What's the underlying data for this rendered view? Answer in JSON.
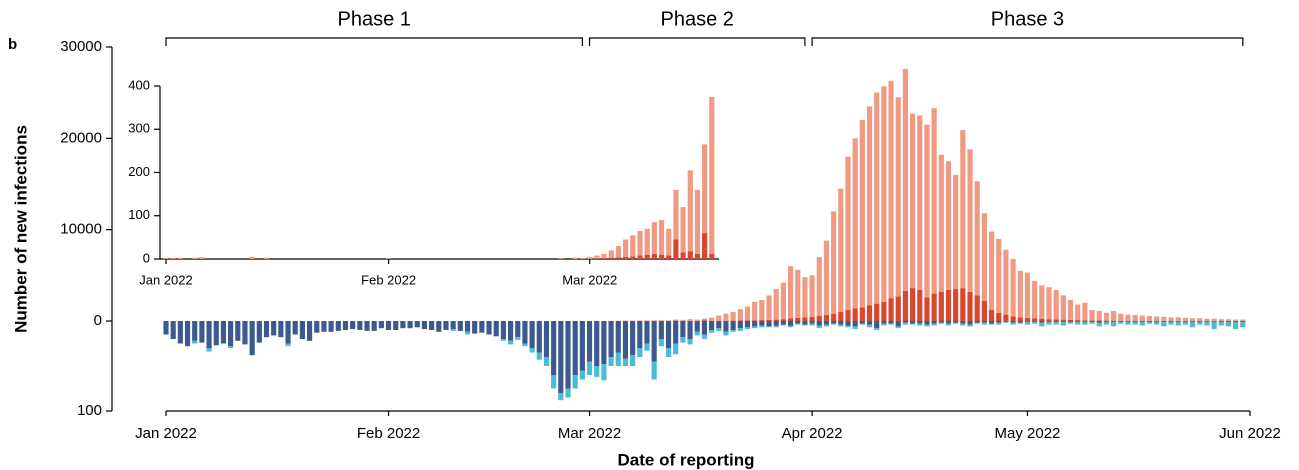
{
  "chart_data": [
    {
      "type": "bar",
      "stacked": true,
      "panel_label": "b",
      "xlabel": "Date of reporting",
      "ylabel": "Number of new infections",
      "xlim": [
        0,
        151
      ],
      "xticks": [
        {
          "value": 0,
          "label": "Jan 2022"
        },
        {
          "value": 31,
          "label": "Feb 2022"
        },
        {
          "value": 59,
          "label": "Mar 2022"
        },
        {
          "value": 90,
          "label": "Apr 2022"
        },
        {
          "value": 120,
          "label": "May 2022"
        },
        {
          "value": 151,
          "label": "Jun 2022"
        }
      ],
      "ylim": [
        0,
        30000
      ],
      "yticks": [
        0,
        10000,
        20000,
        30000
      ],
      "y2lim": [
        0,
        100
      ],
      "y2ticks": [
        100
      ],
      "y2_inverted": true,
      "phases": [
        {
          "label": "Phase 1",
          "start": 0,
          "end": 58
        },
        {
          "label": "Phase 2",
          "start": 59,
          "end": 89
        },
        {
          "label": "Phase 3",
          "start": 90,
          "end": 150
        }
      ],
      "x": [
        0,
        1,
        2,
        3,
        4,
        5,
        6,
        7,
        8,
        9,
        10,
        11,
        12,
        13,
        14,
        15,
        16,
        17,
        18,
        19,
        20,
        21,
        22,
        23,
        24,
        25,
        26,
        27,
        28,
        29,
        30,
        31,
        32,
        33,
        34,
        35,
        36,
        37,
        38,
        39,
        40,
        41,
        42,
        43,
        44,
        45,
        46,
        47,
        48,
        49,
        50,
        51,
        52,
        53,
        54,
        55,
        56,
        57,
        58,
        59,
        60,
        61,
        62,
        63,
        64,
        65,
        66,
        67,
        68,
        69,
        70,
        71,
        72,
        73,
        74,
        75,
        76,
        77,
        78,
        79,
        80,
        81,
        82,
        83,
        84,
        85,
        86,
        87,
        88,
        89,
        90,
        91,
        92,
        93,
        94,
        95,
        96,
        97,
        98,
        99,
        100,
        101,
        102,
        103,
        104,
        105,
        106,
        107,
        108,
        109,
        110,
        111,
        112,
        113,
        114,
        115,
        116,
        117,
        118,
        119,
        120,
        121,
        122,
        123,
        124,
        125,
        126,
        127,
        128,
        129,
        130,
        131,
        132,
        133,
        134,
        135,
        136,
        137,
        138,
        139,
        140,
        141,
        142,
        143,
        144,
        145,
        146,
        147,
        148,
        149,
        150
      ],
      "series": [
        {
          "color": "#d9472f",
          "values": [
            0,
            0,
            0,
            0,
            0,
            0,
            0,
            0,
            0,
            0,
            0,
            0,
            0,
            0,
            0,
            0,
            0,
            0,
            0,
            0,
            0,
            0,
            0,
            0,
            0,
            0,
            0,
            0,
            0,
            0,
            0,
            0,
            0,
            0,
            0,
            0,
            0,
            0,
            0,
            0,
            0,
            0,
            0,
            0,
            0,
            0,
            0,
            0,
            0,
            0,
            0,
            0,
            0,
            0,
            0,
            0,
            0,
            0,
            0,
            0,
            1,
            2,
            3,
            4,
            5,
            6,
            8,
            10,
            12,
            10,
            8,
            45,
            15,
            18,
            12,
            60,
            12,
            20,
            30,
            40,
            50,
            60,
            80,
            100,
            120,
            150,
            200,
            300,
            350,
            400,
            450,
            550,
            650,
            800,
            1000,
            1200,
            1400,
            1500,
            1700,
            1900,
            2100,
            2500,
            2700,
            3300,
            3600,
            3400,
            2600,
            3000,
            3200,
            3400,
            3500,
            3600,
            3200,
            2800,
            2200,
            1200,
            900,
            700,
            500,
            400,
            350,
            300,
            250,
            200,
            180,
            150,
            120,
            100,
            80,
            60,
            50,
            40,
            30,
            30,
            20,
            20,
            20,
            15,
            15,
            10,
            10,
            10,
            10,
            8,
            8,
            6,
            6,
            5,
            5,
            4,
            4
          ]
        },
        {
          "color": "#ef9a82",
          "values": [
            2,
            2,
            3,
            0,
            3,
            4,
            0,
            0,
            0,
            0,
            0,
            0,
            5,
            0,
            3,
            0,
            0,
            0,
            0,
            0,
            0,
            0,
            0,
            0,
            0,
            0,
            0,
            0,
            0,
            0,
            0,
            1,
            0,
            0,
            0,
            0,
            0,
            0,
            0,
            0,
            0,
            0,
            0,
            0,
            0,
            0,
            0,
            0,
            0,
            0,
            0,
            0,
            0,
            0,
            0,
            2,
            0,
            3,
            2,
            5,
            7,
            10,
            17,
            26,
            40,
            49,
            57,
            60,
            73,
            80,
            62,
            115,
            105,
            187,
            148,
            205,
            363,
            580,
            770,
            960,
            1250,
            1540,
            2020,
            2200,
            2680,
            3350,
            4000,
            5700,
            5250,
            4400,
            4550,
            6450,
            8150,
            11200,
            13500,
            16800,
            18600,
            20500,
            21800,
            23100,
            23600,
            23800,
            21800,
            24300,
            19100,
            19100,
            18900,
            20300,
            15000,
            14100,
            12500,
            17300,
            15600,
            12500,
            9600,
            8600,
            8100,
            7100,
            6300,
            5100,
            4950,
            4100,
            3650,
            3500,
            3220,
            2650,
            2180,
            1700,
            1920,
            1140,
            1050,
            860,
            1070,
            770,
            680,
            630,
            580,
            535,
            485,
            440,
            390,
            390,
            340,
            292,
            292,
            244,
            244,
            195,
            195,
            146,
            146
          ]
        },
        {
          "color": "#3d5a8e",
          "axis": "y2",
          "values": [
            15,
            20,
            25,
            28,
            22,
            24,
            30,
            27,
            25,
            28,
            22,
            26,
            38,
            24,
            18,
            16,
            18,
            25,
            15,
            20,
            22,
            13,
            12,
            12,
            11,
            10,
            9,
            10,
            11,
            11,
            8,
            10,
            10,
            8,
            8,
            7,
            9,
            10,
            12,
            10,
            9,
            11,
            12,
            14,
            13,
            15,
            17,
            20,
            22,
            18,
            25,
            30,
            35,
            40,
            60,
            80,
            75,
            60,
            55,
            45,
            50,
            48,
            40,
            35,
            42,
            38,
            30,
            25,
            45,
            20,
            30,
            25,
            18,
            20,
            12,
            15,
            10,
            8,
            12,
            10,
            8,
            7,
            6,
            5,
            6,
            5,
            4,
            5,
            3,
            4,
            3,
            5,
            4,
            3,
            4,
            5,
            6,
            3,
            4,
            8,
            3,
            3,
            6,
            2,
            3,
            3,
            4,
            3,
            2,
            3,
            2,
            3,
            4,
            2,
            2,
            3,
            2,
            1,
            2,
            2,
            1,
            1,
            2,
            1,
            1,
            1,
            1,
            1,
            1,
            1,
            2,
            1,
            1,
            1,
            1,
            1,
            1,
            1,
            1,
            1,
            1,
            1,
            1,
            1,
            1,
            1,
            1,
            1,
            1,
            1,
            1
          ]
        },
        {
          "color": "#4dbbd7",
          "axis": "y2",
          "values": [
            0,
            0,
            0,
            0,
            3,
            0,
            4,
            0,
            0,
            2,
            0,
            0,
            0,
            0,
            0,
            0,
            0,
            3,
            0,
            0,
            0,
            0,
            0,
            0,
            0,
            0,
            0,
            0,
            0,
            0,
            0,
            0,
            0,
            0,
            0,
            0,
            0,
            0,
            0,
            0,
            2,
            0,
            3,
            0,
            0,
            0,
            0,
            2,
            4,
            3,
            3,
            5,
            8,
            10,
            15,
            8,
            10,
            15,
            10,
            15,
            12,
            18,
            10,
            15,
            8,
            12,
            10,
            8,
            20,
            8,
            10,
            12,
            6,
            6,
            4,
            5,
            3,
            3,
            4,
            2,
            3,
            2,
            2,
            2,
            1,
            2,
            1,
            2,
            1,
            1,
            2,
            3,
            2,
            1,
            2,
            2,
            3,
            1,
            3,
            2,
            2,
            1,
            2,
            2,
            1,
            2,
            2,
            2,
            1,
            2,
            1,
            2,
            2,
            1,
            2,
            1,
            2,
            1,
            2,
            1,
            3,
            2,
            4,
            3,
            3,
            4,
            2,
            3,
            3,
            2,
            4,
            3,
            5,
            2,
            3,
            3,
            4,
            2,
            3,
            5,
            3,
            4,
            3,
            6,
            3,
            4,
            8,
            4,
            5,
            8,
            6
          ]
        }
      ]
    },
    {
      "type": "bar",
      "stacked": true,
      "xlim": [
        0,
        77
      ],
      "xticks": [
        {
          "value": 0,
          "label": "Jan 2022"
        },
        {
          "value": 31,
          "label": "Feb 2022"
        },
        {
          "value": 59,
          "label": "Mar 2022"
        }
      ],
      "ylim": [
        0,
        400
      ],
      "yticks": [
        0,
        100,
        200,
        300,
        400
      ],
      "x": [
        0,
        1,
        2,
        3,
        4,
        5,
        6,
        7,
        8,
        9,
        10,
        11,
        12,
        13,
        14,
        15,
        16,
        17,
        18,
        19,
        20,
        21,
        22,
        23,
        24,
        25,
        26,
        27,
        28,
        29,
        30,
        31,
        32,
        33,
        34,
        35,
        36,
        37,
        38,
        39,
        40,
        41,
        42,
        43,
        44,
        45,
        46,
        47,
        48,
        49,
        50,
        51,
        52,
        53,
        54,
        55,
        56,
        57,
        58,
        59,
        60,
        61,
        62,
        63,
        64,
        65,
        66,
        67,
        68,
        69,
        70,
        71,
        72,
        73,
        74,
        75,
        76
      ],
      "series": [
        {
          "color": "#d9472f",
          "values": [
            0,
            0,
            0,
            0,
            0,
            0,
            0,
            0,
            0,
            0,
            0,
            0,
            0,
            0,
            0,
            0,
            0,
            0,
            0,
            0,
            0,
            0,
            0,
            0,
            0,
            0,
            0,
            0,
            0,
            0,
            0,
            0,
            0,
            0,
            0,
            0,
            0,
            0,
            0,
            0,
            0,
            0,
            0,
            0,
            0,
            0,
            0,
            0,
            0,
            0,
            0,
            0,
            0,
            0,
            0,
            0,
            0,
            0,
            0,
            0,
            1,
            2,
            3,
            4,
            5,
            6,
            8,
            10,
            12,
            10,
            8,
            45,
            15,
            18,
            12,
            60,
            12
          ]
        },
        {
          "color": "#ef9a82",
          "values": [
            2,
            2,
            3,
            0,
            3,
            4,
            0,
            0,
            0,
            0,
            0,
            0,
            5,
            0,
            3,
            0,
            0,
            0,
            0,
            0,
            0,
            0,
            0,
            0,
            0,
            0,
            0,
            0,
            0,
            0,
            0,
            1,
            0,
            0,
            0,
            0,
            0,
            0,
            0,
            0,
            0,
            0,
            0,
            0,
            0,
            0,
            0,
            0,
            0,
            0,
            0,
            0,
            0,
            0,
            0,
            2,
            0,
            3,
            2,
            5,
            7,
            10,
            17,
            26,
            40,
            49,
            57,
            60,
            73,
            80,
            62,
            115,
            105,
            187,
            148,
            205,
            363
          ]
        }
      ]
    }
  ]
}
